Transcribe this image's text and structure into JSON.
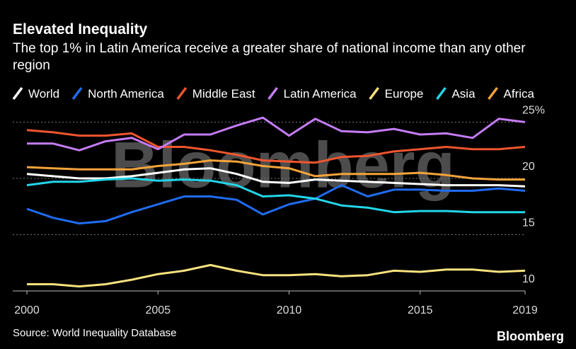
{
  "chart_data": {
    "type": "line",
    "title": "Elevated Inequality",
    "subtitle": "The top 1% in Latin America receive a greater share of national income than any other region",
    "watermark": "Bloomberg",
    "source": "Source: World Inequality Database",
    "logo": "Bloomberg",
    "x": [
      2000,
      2001,
      2002,
      2003,
      2004,
      2005,
      2006,
      2007,
      2008,
      2009,
      2010,
      2011,
      2012,
      2013,
      2014,
      2015,
      2016,
      2017,
      2018,
      2019
    ],
    "xlim": [
      2000,
      2019
    ],
    "xticks": [
      2000,
      2005,
      2010,
      2015,
      2019
    ],
    "ylim": [
      10,
      25.5
    ],
    "yticks": [
      10,
      15,
      20,
      {
        "value": 25,
        "label": "25%"
      }
    ],
    "grid": true,
    "series": [
      {
        "name": "World",
        "color": "#ffffff",
        "values": [
          20.4,
          20.2,
          20.0,
          20.0,
          20.2,
          20.5,
          20.8,
          20.9,
          20.4,
          19.7,
          19.6,
          19.9,
          19.8,
          19.7,
          19.6,
          19.5,
          19.4,
          19.4,
          19.4,
          19.3
        ]
      },
      {
        "name": "North America",
        "color": "#1f6cf0",
        "values": [
          17.3,
          16.5,
          16.0,
          16.2,
          17.0,
          17.7,
          18.4,
          18.4,
          18.1,
          16.8,
          17.7,
          18.2,
          19.4,
          18.4,
          19.0,
          19.0,
          18.9,
          18.9,
          19.1,
          18.9
        ]
      },
      {
        "name": "Middle East",
        "color": "#f0552e",
        "values": [
          24.3,
          24.1,
          23.8,
          23.8,
          24.0,
          22.8,
          22.8,
          22.5,
          22.1,
          21.6,
          21.5,
          21.4,
          21.9,
          22.0,
          22.4,
          22.6,
          22.8,
          22.6,
          22.6,
          22.8
        ]
      },
      {
        "name": "Latin America",
        "color": "#c57cf5",
        "values": [
          23.1,
          23.1,
          22.5,
          23.3,
          23.6,
          22.6,
          23.9,
          23.9,
          24.7,
          25.4,
          23.8,
          25.3,
          24.2,
          24.1,
          24.4,
          23.9,
          24.0,
          23.6,
          25.3,
          25.0
        ]
      },
      {
        "name": "Europe",
        "color": "#f7e27e",
        "values": [
          10.6,
          10.6,
          10.4,
          10.6,
          11.0,
          11.5,
          11.8,
          12.3,
          11.8,
          11.4,
          11.4,
          11.5,
          11.3,
          11.4,
          11.8,
          11.7,
          11.9,
          11.9,
          11.7,
          11.8
        ]
      },
      {
        "name": "Asia",
        "color": "#22d6e8",
        "values": [
          19.4,
          19.7,
          19.7,
          19.9,
          20.0,
          19.8,
          19.9,
          19.8,
          19.4,
          18.4,
          18.5,
          18.2,
          17.6,
          17.4,
          17.0,
          17.1,
          17.1,
          17.0,
          17.0,
          17.0
        ]
      },
      {
        "name": "Africa",
        "color": "#f5a43a",
        "values": [
          21.0,
          20.9,
          20.8,
          20.8,
          20.8,
          21.1,
          21.3,
          21.6,
          21.5,
          21.1,
          20.9,
          20.2,
          20.4,
          20.4,
          20.4,
          20.5,
          20.3,
          20.0,
          19.9,
          19.9
        ]
      }
    ]
  }
}
